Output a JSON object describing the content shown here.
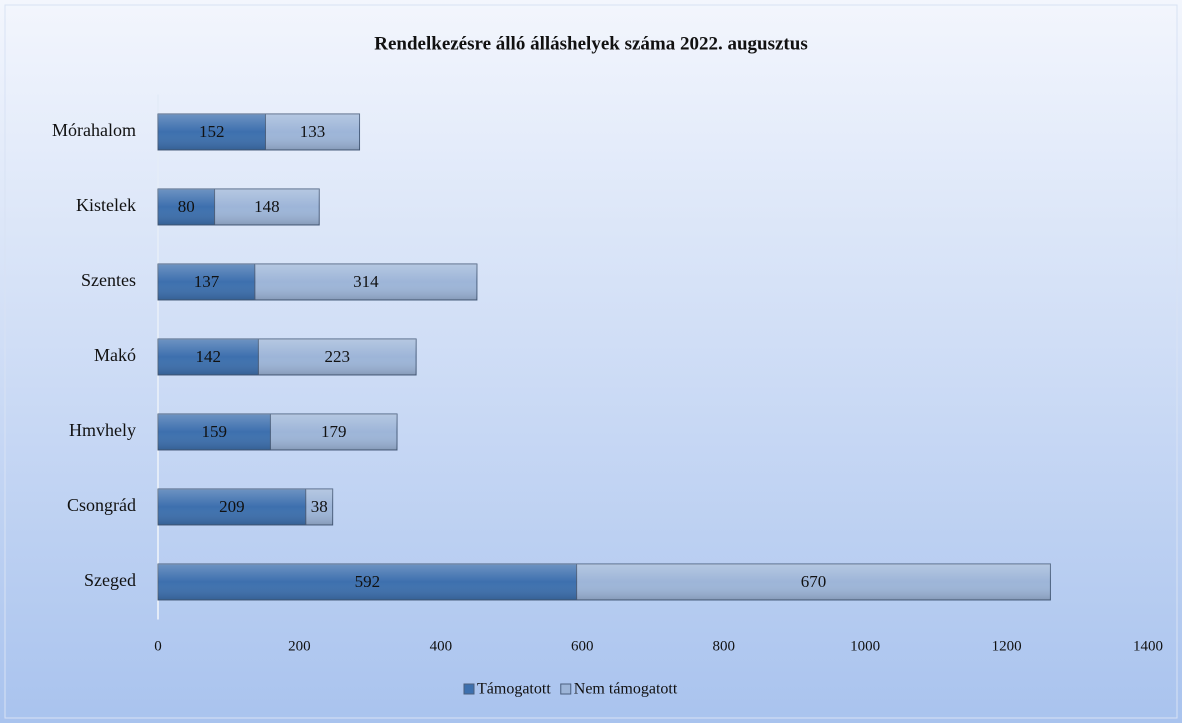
{
  "chart_data": {
    "type": "stacked_bar_horizontal",
    "title": "Rendelkezésre álló álláshelyek száma 2022. augusztus",
    "categories": [
      "Mórahalom",
      "Kistelek",
      "Szentes",
      "Makó",
      "Hmvhely",
      "Csongrád",
      "Szeged"
    ],
    "series": [
      {
        "name": "Támogatott",
        "color": "#3d70ae",
        "values": [
          152,
          80,
          137,
          142,
          159,
          209,
          592
        ]
      },
      {
        "name": "Nem támogatott",
        "color": "#9db5d8",
        "values": [
          133,
          148,
          314,
          223,
          179,
          38,
          670
        ]
      }
    ],
    "xlim": [
      0,
      1400
    ],
    "xticks": [
      0,
      200,
      400,
      600,
      800,
      1000,
      1200,
      1400
    ],
    "legend": "bottom"
  }
}
